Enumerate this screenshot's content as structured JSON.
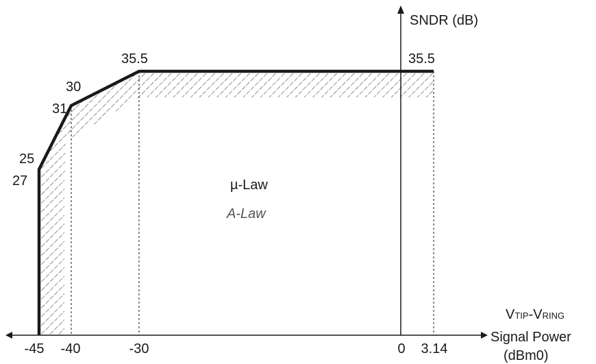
{
  "chart_data": {
    "type": "line",
    "x_ticks": [
      "-45",
      "-40",
      "-30",
      "0",
      "3.14"
    ],
    "y_axis_label": "SNDR (dB)",
    "x_axis_label": {
      "v_tip": {
        "main": "V",
        "sub": "TIP"
      },
      "dash": "-",
      "v_ring": {
        "main": "V",
        "sub": "RING"
      },
      "line2": "Signal Power",
      "line3": "(dBm0)"
    },
    "legend": {
      "mu_law": "µ-Law",
      "a_law": "A-Law"
    },
    "series": [
      {
        "name": "µ-Law",
        "x": [
          -45,
          -40,
          -30,
          3.14
        ],
        "y": [
          27,
          31,
          35.5,
          35.5
        ]
      },
      {
        "name": "A-Law",
        "x": [
          -45,
          -40,
          -30,
          3.14
        ],
        "y": [
          25,
          30,
          35.5,
          35.5
        ]
      }
    ],
    "point_labels": {
      "p1_mu": "27",
      "p1_a": "25",
      "p2_mu": "31",
      "p2_a": "30",
      "p3": "35.5",
      "p4": "35.5"
    }
  }
}
